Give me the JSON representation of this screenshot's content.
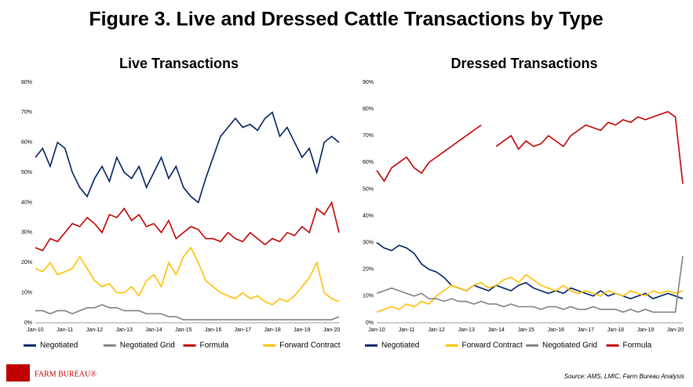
{
  "title": "Figure 3. Live and Dressed Cattle Transactions by Type",
  "source": "Source: AMS, LMIC, Farm Bureau Analysis",
  "logo": "FARM BUREAU®",
  "chart_data": [
    {
      "type": "line",
      "title": "Live Transactions",
      "categories": [
        "Jan-10",
        null,
        null,
        null,
        "Jan-11",
        null,
        null,
        null,
        "Jan-12",
        null,
        null,
        null,
        "Jan-13",
        null,
        null,
        null,
        "Jan-14",
        null,
        null,
        null,
        "Jan-15",
        null,
        null,
        null,
        "Jan-16",
        null,
        null,
        null,
        "Jan-17",
        null,
        null,
        null,
        "Jan-18",
        null,
        null,
        null,
        "Jan-19",
        null,
        null,
        null,
        "Jan-20",
        null
      ],
      "ylim": [
        0,
        80
      ],
      "yticks": [
        {
          "value": 0,
          "label": "0%"
        },
        {
          "value": 10,
          "label": "10%"
        },
        {
          "value": 20,
          "label": "20%"
        },
        {
          "value": 30,
          "label": "30%"
        },
        {
          "value": 40,
          "label": "40%"
        },
        {
          "value": 50,
          "label": "50%"
        },
        {
          "value": 60,
          "label": "60%"
        },
        {
          "value": 70,
          "label": "70%"
        },
        {
          "value": 80,
          "label": "80%"
        }
      ],
      "grid": false,
      "series": [
        {
          "name": "Negotiated",
          "color": "#002060",
          "values": [
            55,
            58,
            52,
            60,
            58,
            50,
            45,
            42,
            48,
            52,
            47,
            55,
            50,
            48,
            52,
            45,
            50,
            55,
            48,
            52,
            45,
            42,
            40,
            48,
            55,
            62,
            65,
            68,
            65,
            66,
            64,
            68,
            70,
            62,
            65,
            60,
            55,
            58,
            50,
            60,
            62,
            60
          ]
        },
        {
          "name": "Negotiated Grid",
          "color": "#808080",
          "values": [
            4,
            4,
            3,
            4,
            4,
            3,
            4,
            5,
            5,
            6,
            5,
            5,
            4,
            4,
            4,
            3,
            3,
            3,
            2,
            2,
            1,
            1,
            1,
            1,
            1,
            1,
            1,
            1,
            1,
            1,
            1,
            1,
            1,
            1,
            1,
            1,
            1,
            1,
            1,
            1,
            1,
            2
          ]
        },
        {
          "name": "Formula",
          "color": "#c00000",
          "values": [
            25,
            24,
            28,
            27,
            30,
            33,
            32,
            35,
            33,
            30,
            36,
            35,
            38,
            34,
            36,
            32,
            33,
            30,
            34,
            28,
            30,
            32,
            31,
            28,
            28,
            27,
            30,
            28,
            27,
            30,
            28,
            26,
            28,
            27,
            30,
            29,
            32,
            30,
            38,
            36,
            40,
            30
          ]
        },
        {
          "name": "Forward Contract",
          "color": "#ffc000",
          "values": [
            18,
            17,
            20,
            16,
            17,
            18,
            22,
            18,
            14,
            12,
            13,
            10,
            10,
            12,
            9,
            14,
            16,
            12,
            20,
            16,
            22,
            25,
            20,
            14,
            12,
            10,
            9,
            8,
            10,
            8,
            9,
            7,
            6,
            8,
            7,
            9,
            12,
            15,
            20,
            10,
            8,
            7
          ]
        }
      ]
    },
    {
      "type": "line",
      "title": "Dressed Transactions",
      "categories": [
        "Jan-10",
        null,
        null,
        null,
        "Jan-11",
        null,
        null,
        null,
        "Jan-12",
        null,
        null,
        null,
        "Jan-13",
        null,
        null,
        null,
        "Jan-14",
        null,
        null,
        null,
        "Jan-15",
        null,
        null,
        null,
        "Jan-16",
        null,
        null,
        null,
        "Jan-17",
        null,
        null,
        null,
        "Jan-18",
        null,
        null,
        null,
        "Jan-19",
        null,
        null,
        null,
        "Jan-20",
        null
      ],
      "ylim": [
        0,
        90
      ],
      "yticks": [
        {
          "value": 0,
          "label": "0%"
        },
        {
          "value": 10,
          "label": "10%"
        },
        {
          "value": 20,
          "label": "20%"
        },
        {
          "value": 30,
          "label": "30%"
        },
        {
          "value": 40,
          "label": "40%"
        },
        {
          "value": 50,
          "label": "50%"
        },
        {
          "value": 60,
          "label": "60%"
        },
        {
          "value": 70,
          "label": "70%"
        },
        {
          "value": 80,
          "label": "80%"
        },
        {
          "value": 90,
          "label": "90%"
        }
      ],
      "grid": false,
      "series": [
        {
          "name": "Negotiated",
          "color": "#002060",
          "values": [
            30,
            28,
            27,
            29,
            28,
            26,
            22,
            20,
            19,
            17,
            14,
            13,
            12,
            14,
            13,
            12,
            14,
            13,
            12,
            14,
            15,
            13,
            12,
            11,
            12,
            11,
            13,
            12,
            11,
            10,
            12,
            10,
            11,
            10,
            9,
            10,
            11,
            9,
            10,
            11,
            10,
            9
          ]
        },
        {
          "name": "Forward Contract",
          "color": "#ffc000",
          "values": [
            4,
            5,
            6,
            5,
            7,
            6,
            8,
            7,
            10,
            12,
            14,
            13,
            12,
            14,
            15,
            13,
            14,
            16,
            17,
            15,
            18,
            16,
            14,
            13,
            12,
            14,
            12,
            11,
            12,
            11,
            10,
            12,
            11,
            10,
            12,
            11,
            10,
            12,
            11,
            12,
            11,
            12
          ]
        },
        {
          "name": "Negotiated Grid",
          "color": "#808080",
          "values": [
            11,
            12,
            13,
            12,
            11,
            10,
            11,
            9,
            9,
            8,
            9,
            8,
            8,
            7,
            8,
            7,
            7,
            6,
            7,
            6,
            6,
            6,
            5,
            6,
            6,
            5,
            6,
            5,
            5,
            6,
            5,
            5,
            5,
            4,
            5,
            4,
            5,
            4,
            4,
            4,
            4,
            25
          ]
        },
        {
          "name": "Formula",
          "color": "#c00000",
          "values": [
            57,
            53,
            58,
            60,
            62,
            58,
            56,
            60,
            62,
            64,
            66,
            68,
            70,
            72,
            74,
            null,
            66,
            68,
            70,
            65,
            68,
            66,
            67,
            70,
            68,
            66,
            70,
            72,
            74,
            73,
            72,
            75,
            74,
            76,
            75,
            77,
            76,
            77,
            78,
            79,
            77,
            52
          ]
        }
      ]
    }
  ]
}
